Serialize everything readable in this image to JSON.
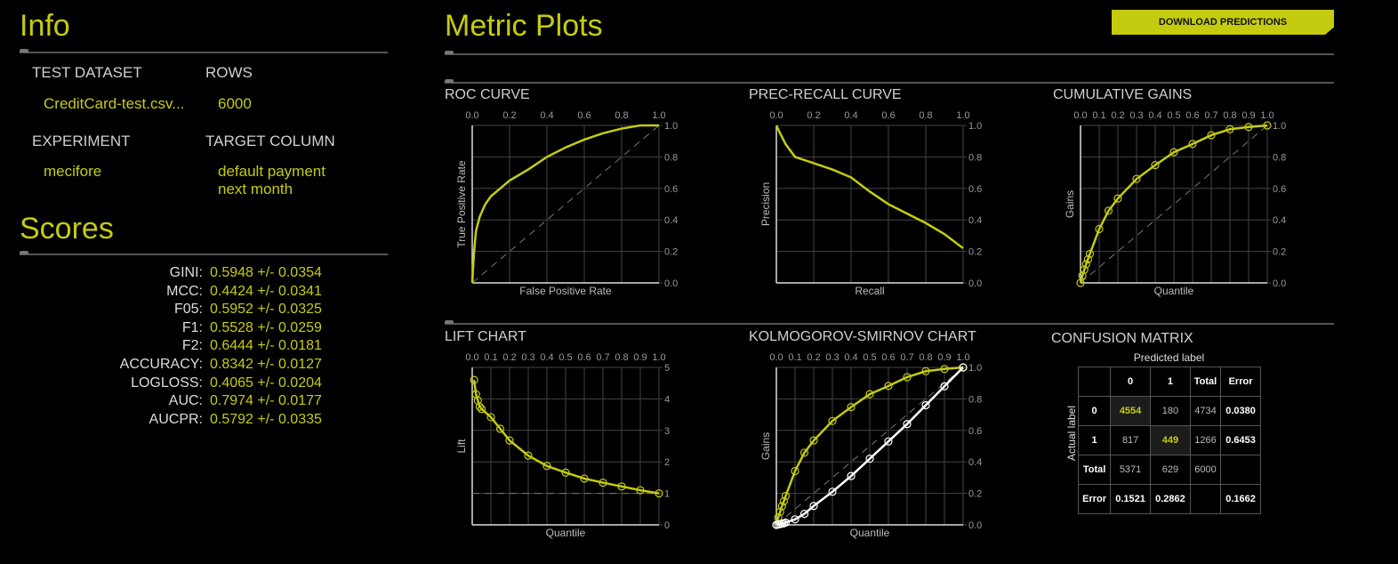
{
  "info": {
    "title": "Info",
    "test_dataset_label": "TEST DATASET",
    "test_dataset": "CreditCard-test.csv...",
    "rows_label": "ROWS",
    "rows": "6000",
    "experiment_label": "EXPERIMENT",
    "experiment": "mecifore",
    "target_label": "TARGET COLUMN",
    "target_line1": "default payment",
    "target_line2": "next month"
  },
  "scores": {
    "title": "Scores",
    "items": [
      {
        "name": "GINI:",
        "value": "0.5948 +/- 0.0354"
      },
      {
        "name": "MCC:",
        "value": "0.4424 +/- 0.0341"
      },
      {
        "name": "F05:",
        "value": "0.5952 +/- 0.0325"
      },
      {
        "name": "F1:",
        "value": "0.5528 +/- 0.0259"
      },
      {
        "name": "F2:",
        "value": "0.6444 +/- 0.0181"
      },
      {
        "name": "ACCURACY:",
        "value": "0.8342 +/- 0.0127"
      },
      {
        "name": "LOGLOSS:",
        "value": "0.4065 +/- 0.0204"
      },
      {
        "name": "AUC:",
        "value": "0.7974 +/- 0.0177"
      },
      {
        "name": "AUCPR:",
        "value": "0.5792 +/- 0.0335"
      }
    ]
  },
  "metric_plots": {
    "title": "Metric Plots",
    "download_label": "DOWNLOAD PREDICTIONS"
  },
  "colors": {
    "accent": "#c5cc10",
    "secondary": "#ffffff",
    "grid": "#444444"
  },
  "chart_data": [
    {
      "id": "roc",
      "type": "line",
      "title": "ROC CURVE",
      "xlabel": "False Positive Rate",
      "ylabel": "True Positive Rate",
      "xlim": [
        0,
        1
      ],
      "ylim": [
        0,
        1
      ],
      "xticks": [
        "0.0",
        "0.2",
        "0.4",
        "0.6",
        "0.8",
        "1.0"
      ],
      "yticks": [
        "0.0",
        "0.2",
        "0.4",
        "0.6",
        "0.8",
        "1.0"
      ],
      "diagonal": true,
      "markers": false,
      "series": [
        {
          "x": [
            0,
            0.01,
            0.02,
            0.04,
            0.07,
            0.1,
            0.15,
            0.2,
            0.3,
            0.4,
            0.5,
            0.6,
            0.7,
            0.8,
            0.9,
            1
          ],
          "y": [
            0,
            0.2,
            0.33,
            0.42,
            0.5,
            0.55,
            0.6,
            0.65,
            0.72,
            0.8,
            0.86,
            0.91,
            0.95,
            0.98,
            1,
            1
          ],
          "color": "accent"
        }
      ]
    },
    {
      "id": "pr",
      "type": "line",
      "title": "PREC-RECALL CURVE",
      "xlabel": "Recall",
      "ylabel": "Precision",
      "xlim": [
        0,
        1
      ],
      "ylim": [
        0,
        1
      ],
      "xticks": [
        "0.0",
        "0.2",
        "0.4",
        "0.6",
        "0.8",
        "1.0"
      ],
      "yticks": [
        "0.0",
        "0.2",
        "0.4",
        "0.6",
        "0.8",
        "1.0"
      ],
      "diagonal": false,
      "markers": false,
      "series": [
        {
          "x": [
            0,
            0.02,
            0.05,
            0.1,
            0.2,
            0.3,
            0.4,
            0.5,
            0.6,
            0.7,
            0.8,
            0.9,
            1
          ],
          "y": [
            1,
            0.95,
            0.88,
            0.8,
            0.76,
            0.72,
            0.67,
            0.58,
            0.5,
            0.44,
            0.38,
            0.31,
            0.22
          ],
          "color": "accent"
        }
      ]
    },
    {
      "id": "gains",
      "type": "line",
      "title": "CUMULATIVE GAINS",
      "xlabel": "Quantile",
      "ylabel": "Gains",
      "xlim": [
        0,
        1
      ],
      "ylim": [
        0,
        1
      ],
      "xticks": [
        "0.0",
        "0.1",
        "0.2",
        "0.3",
        "0.4",
        "0.5",
        "0.6",
        "0.7",
        "0.8",
        "0.9",
        "1.0"
      ],
      "yticks": [
        "0.0",
        "0.2",
        "0.4",
        "0.6",
        "0.8",
        "1.0"
      ],
      "diagonal": true,
      "markers": true,
      "series": [
        {
          "x": [
            0,
            0.01,
            0.02,
            0.03,
            0.04,
            0.05,
            0.1,
            0.15,
            0.2,
            0.3,
            0.4,
            0.5,
            0.6,
            0.7,
            0.8,
            0.9,
            1
          ],
          "y": [
            0,
            0.046,
            0.083,
            0.119,
            0.15,
            0.184,
            0.342,
            0.458,
            0.536,
            0.66,
            0.748,
            0.83,
            0.882,
            0.938,
            0.976,
            0.99,
            1
          ],
          "color": "accent"
        }
      ]
    },
    {
      "id": "lift",
      "type": "line",
      "title": "LIFT CHART",
      "xlabel": "Quantile",
      "ylabel": "Lift",
      "xlim": [
        0,
        1
      ],
      "ylim": [
        0,
        5
      ],
      "xticks": [
        "0.0",
        "0.1",
        "0.2",
        "0.3",
        "0.4",
        "0.5",
        "0.6",
        "0.7",
        "0.8",
        "0.9",
        "1.0"
      ],
      "yticks": [
        "0",
        "1",
        "2",
        "3",
        "4",
        "5"
      ],
      "baseline": 1,
      "markers": true,
      "series": [
        {
          "x": [
            0.01,
            0.02,
            0.03,
            0.04,
            0.05,
            0.1,
            0.15,
            0.2,
            0.3,
            0.4,
            0.5,
            0.6,
            0.7,
            0.8,
            0.9,
            1
          ],
          "y": [
            4.6,
            4.15,
            3.95,
            3.75,
            3.68,
            3.42,
            3.05,
            2.68,
            2.2,
            1.87,
            1.66,
            1.47,
            1.34,
            1.22,
            1.1,
            1
          ],
          "color": "accent"
        }
      ]
    },
    {
      "id": "ks",
      "type": "line",
      "title": "KOLMOGOROV-SMIRNOV CHART",
      "xlabel": "Quantile",
      "ylabel": "Gains",
      "xlim": [
        0,
        1
      ],
      "ylim": [
        0,
        1
      ],
      "xticks": [
        "0.0",
        "0.1",
        "0.2",
        "0.3",
        "0.4",
        "0.5",
        "0.6",
        "0.7",
        "0.8",
        "0.9",
        "1.0"
      ],
      "yticks": [
        "0.0",
        "0.2",
        "0.4",
        "0.6",
        "0.8",
        "1.0"
      ],
      "diagonal": true,
      "markers": true,
      "series": [
        {
          "x": [
            0,
            0.01,
            0.02,
            0.03,
            0.04,
            0.05,
            0.1,
            0.15,
            0.2,
            0.3,
            0.4,
            0.5,
            0.6,
            0.7,
            0.8,
            0.9,
            1
          ],
          "y": [
            0,
            0.046,
            0.083,
            0.119,
            0.15,
            0.184,
            0.342,
            0.458,
            0.536,
            0.66,
            0.748,
            0.83,
            0.882,
            0.938,
            0.976,
            0.99,
            1
          ],
          "color": "accent"
        },
        {
          "x": [
            0,
            0.01,
            0.02,
            0.03,
            0.04,
            0.05,
            0.1,
            0.15,
            0.2,
            0.3,
            0.4,
            0.5,
            0.6,
            0.7,
            0.8,
            0.9,
            1
          ],
          "y": [
            0,
            0.003,
            0.005,
            0.008,
            0.01,
            0.015,
            0.035,
            0.07,
            0.12,
            0.21,
            0.31,
            0.42,
            0.53,
            0.64,
            0.76,
            0.88,
            1
          ],
          "color": "secondary"
        }
      ]
    },
    {
      "id": "confusion",
      "type": "table",
      "title": "CONFUSION MATRIX",
      "col_axis": "Predicted label",
      "row_axis": "Actual label",
      "header": [
        "",
        "0",
        "1",
        "Total",
        "Error"
      ],
      "rows": [
        [
          "0",
          "4554",
          "180",
          "4734",
          "0.0380"
        ],
        [
          "1",
          "817",
          "449",
          "1266",
          "0.6453"
        ],
        [
          "Total",
          "5371",
          "629",
          "6000",
          ""
        ],
        [
          "Error",
          "0.1521",
          "0.2862",
          "",
          "0.1662"
        ]
      ]
    }
  ]
}
